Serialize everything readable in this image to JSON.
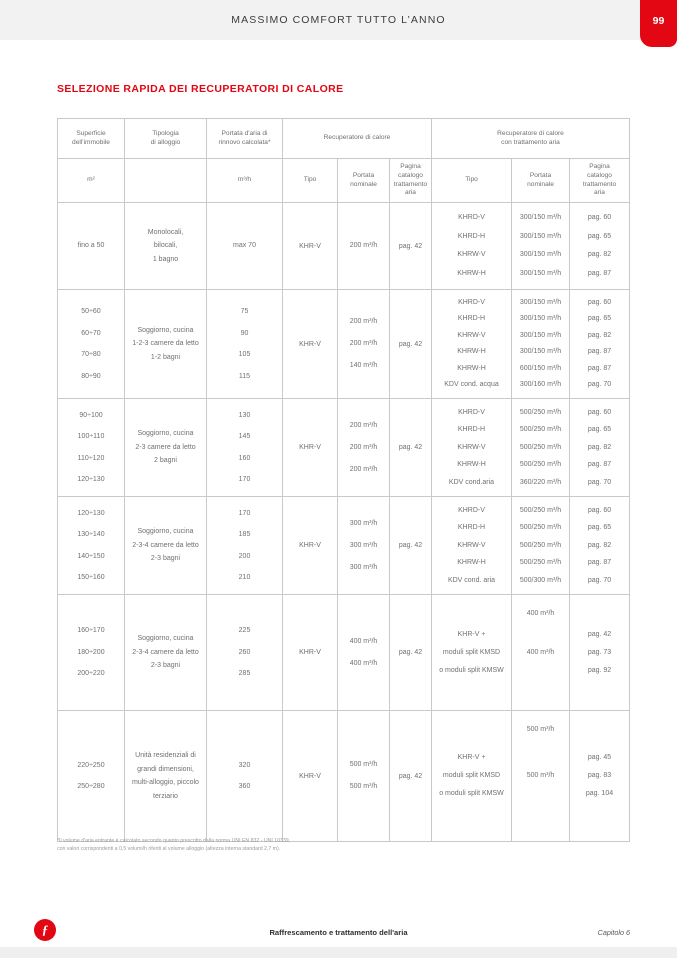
{
  "header": {
    "title": "MASSIMO COMFORT TUTTO L’ANNO",
    "page_number": "99"
  },
  "section_title": "SELEZIONE RAPIDA DEI RECUPERATORI DI CALORE",
  "accent_color": "#e30613",
  "table": {
    "header": {
      "superficie": "Superficie\ndell'immobile",
      "tipologia": "Tipologia\ndi alloggio",
      "portata_rinnovo": "Portata d'aria di\nrinnovo calcolata*",
      "recuperatore": "Recuperatore di calore",
      "recuperatore_trattamento": "Recuperatore di calore\ncon trattamento aria",
      "sub": {
        "superficie_unit": "m²",
        "tipologia_unit": "",
        "portata_unit": "m³/h",
        "tipo": "Tipo",
        "portata_nominale": "Portata\nnominale",
        "pagina": "Pagina\ncatalogo\ntrattamento\naria"
      }
    },
    "groups": [
      {
        "superficie": [
          "fino a 50"
        ],
        "tipologia": [
          "Monolocali,",
          "bilocali,",
          "1 bagno"
        ],
        "portata_rinnovo": [
          "max 70"
        ],
        "recuperatore": {
          "tipo": "KHR-V",
          "portata": [
            "200 m³/h"
          ],
          "pagina": "pag. 42"
        },
        "trattamento": {
          "layout": "even",
          "tipo": [
            "KHRD-V",
            "KHRD-H",
            "KHRW-V",
            "KHRW-H"
          ],
          "portata": [
            "300/150 m³/h",
            "300/150 m³/h",
            "300/150 m³/h",
            "300/150 m³/h"
          ],
          "pagina": [
            "pag. 60",
            "pag. 65",
            "pag. 82",
            "pag. 87"
          ]
        }
      },
      {
        "superficie": [
          "50÷60",
          "60÷70",
          "70÷80",
          "80÷90"
        ],
        "tipologia": [
          "Soggiorno, cucina",
          "1-2-3 camere da letto",
          "1-2 bagni"
        ],
        "portata_rinnovo": [
          "75",
          "90",
          "105",
          "115"
        ],
        "recuperatore": {
          "tipo": "KHR-V",
          "portata": [
            "200 m³/h",
            "200 m³/h",
            "140 m³/h"
          ],
          "pagina": "pag. 42"
        },
        "trattamento": {
          "layout": "even",
          "tipo": [
            "KHRD-V",
            "KHRD-H",
            "KHRW-V",
            "KHRW-H",
            "KHRW-H",
            "KDV cond. acqua"
          ],
          "portata": [
            "300/150 m³/h",
            "300/150 m³/h",
            "300/150 m³/h",
            "300/150 m³/h",
            "600/150 m³/h",
            "300/160 m³/h"
          ],
          "pagina": [
            "pag. 60",
            "pag. 65",
            "pag. 82",
            "pag. 87",
            "pag. 87",
            "pag. 70"
          ]
        }
      },
      {
        "superficie": [
          "90÷100",
          "100÷110",
          "110÷120",
          "120÷130"
        ],
        "tipologia": [
          "Soggiorno, cucina",
          "2-3 camere da letto",
          "2 bagni"
        ],
        "portata_rinnovo": [
          "130",
          "145",
          "160",
          "170"
        ],
        "recuperatore": {
          "tipo": "KHR-V",
          "portata": [
            "200 m³/h",
            "200 m³/h",
            "200 m³/h"
          ],
          "pagina": "pag. 42"
        },
        "trattamento": {
          "layout": "even",
          "tipo": [
            "KHRD-V",
            "KHRD-H",
            "KHRW-V",
            "KHRW-H",
            "KDV cond.aria"
          ],
          "portata": [
            "500/250 m³/h",
            "500/250 m³/h",
            "500/250 m³/h",
            "500/250 m³/h",
            "360/220 m³/h"
          ],
          "pagina": [
            "pag. 60",
            "pag. 65",
            "pag. 82",
            "pag. 87",
            "pag. 70"
          ]
        }
      },
      {
        "superficie": [
          "120÷130",
          "130÷140",
          "140÷150",
          "150÷160"
        ],
        "tipologia": [
          "Soggiorno, cucina",
          "2-3-4 camere da letto",
          "2-3 bagni"
        ],
        "portata_rinnovo": [
          "170",
          "185",
          "200",
          "210"
        ],
        "recuperatore": {
          "tipo": "KHR-V",
          "portata": [
            "300 m³/h",
            "300 m³/h",
            "300 m³/h"
          ],
          "pagina": "pag. 42"
        },
        "trattamento": {
          "layout": "even",
          "tipo": [
            "KHRD-V",
            "KHRD-H",
            "KHRW-V",
            "KHRW-H",
            "KDV cond. aria"
          ],
          "portata": [
            "500/250 m³/h",
            "500/250 m³/h",
            "500/250 m³/h",
            "500/250 m³/h",
            "500/300 m³/h"
          ],
          "pagina": [
            "pag. 60",
            "pag. 65",
            "pag. 82",
            "pag. 87",
            "pag. 70"
          ]
        }
      },
      {
        "superficie": [
          "160÷170",
          "180÷200",
          "200÷220"
        ],
        "tipologia": [
          "Soggiorno, cucina",
          "2-3-4 camere da letto",
          "2-3 bagni"
        ],
        "portata_rinnovo": [
          "225",
          "260",
          "285"
        ],
        "recuperatore": {
          "tipo": "KHR-V",
          "portata": [
            "400 m³/h",
            "400 m³/h"
          ],
          "pagina": "pag. 42"
        },
        "trattamento": {
          "layout": "split",
          "tipo": [
            "KHR-V +",
            "moduli split KMSD",
            "o moduli split KMSW"
          ],
          "portata": [
            "400 m³/h",
            "400 m³/h"
          ],
          "pagina": [
            "pag. 42",
            "pag. 73",
            "pag. 92"
          ]
        }
      },
      {
        "superficie": [
          "220÷250",
          "250÷280"
        ],
        "tipologia": [
          "Unità residenziali di",
          "grandi dimensioni,",
          "multi-alloggio, piccolo",
          "terziario"
        ],
        "portata_rinnovo": [
          "320",
          "360"
        ],
        "recuperatore": {
          "tipo": "KHR-V",
          "portata": [
            "500 m³/h",
            "500 m³/h"
          ],
          "pagina": "pag. 42"
        },
        "trattamento": {
          "layout": "split",
          "tipo": [
            "KHR-V +",
            "moduli split KMSD",
            "o moduli split KMSW"
          ],
          "portata": [
            "500 m³/h",
            "500 m³/h"
          ],
          "pagina": [
            "pag. 45",
            "pag. 83",
            "pag. 104"
          ]
        }
      }
    ]
  },
  "footnote": {
    "line1": "*Il volume d'aria entrante è calcolato secondo quanto prescritto dalla norma UNI EN 832 - UNI 10339,",
    "line2": "con valori corrispondenti a 0,5 volumi/h riferiti al volume alloggio (altezza interna standard 2,7 m)."
  },
  "footer": {
    "logo_glyph": "ƒ",
    "center": "Raffrescamento e trattamento dell'aria",
    "right": "Capitolo 6"
  }
}
